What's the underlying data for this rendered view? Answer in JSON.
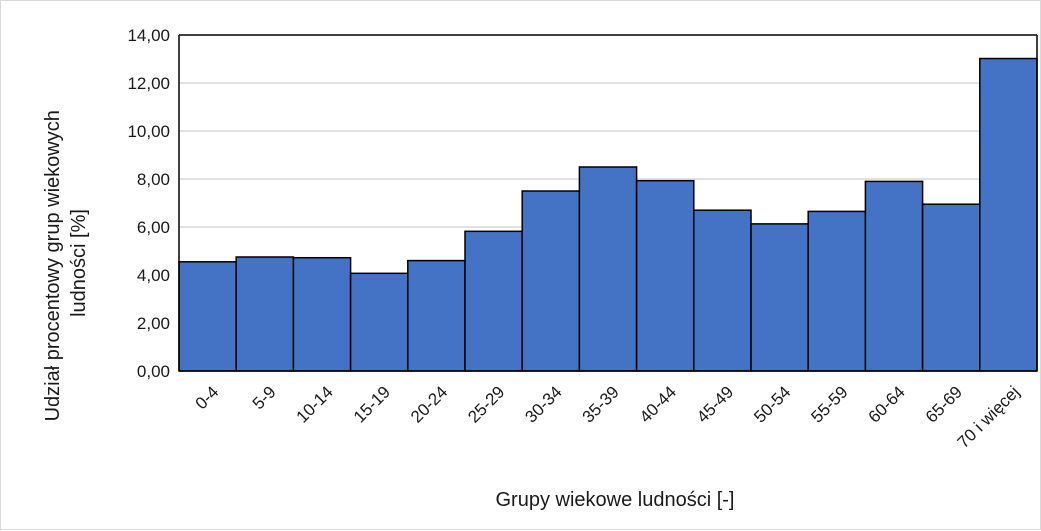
{
  "chart_data": {
    "type": "bar",
    "title": "",
    "xlabel": "Grupy wiekowe ludności [-]",
    "ylabel_lines": [
      "Udział procentowy  grup wiekowych",
      "ludności [%]"
    ],
    "categories": [
      "0-4",
      "5-9",
      "10-14",
      "15-19",
      "20-24",
      "25-29",
      "30-34",
      "35-39",
      "40-44",
      "45-49",
      "50-54",
      "55-59",
      "60-64",
      "65-69",
      "70 i więcej"
    ],
    "values": [
      4.55,
      4.75,
      4.72,
      4.07,
      4.6,
      5.82,
      7.5,
      8.5,
      7.93,
      6.7,
      6.13,
      6.65,
      7.9,
      6.95,
      13.02
    ],
    "ylim": [
      0,
      14
    ],
    "yticks": [
      "0,00",
      "2,00",
      "4,00",
      "6,00",
      "8,00",
      "10,00",
      "12,00",
      "14,00"
    ],
    "grid": true,
    "bar_color": "#4472c4",
    "bar_edge_color": "#000000",
    "grid_color": "#d9d9d9"
  }
}
